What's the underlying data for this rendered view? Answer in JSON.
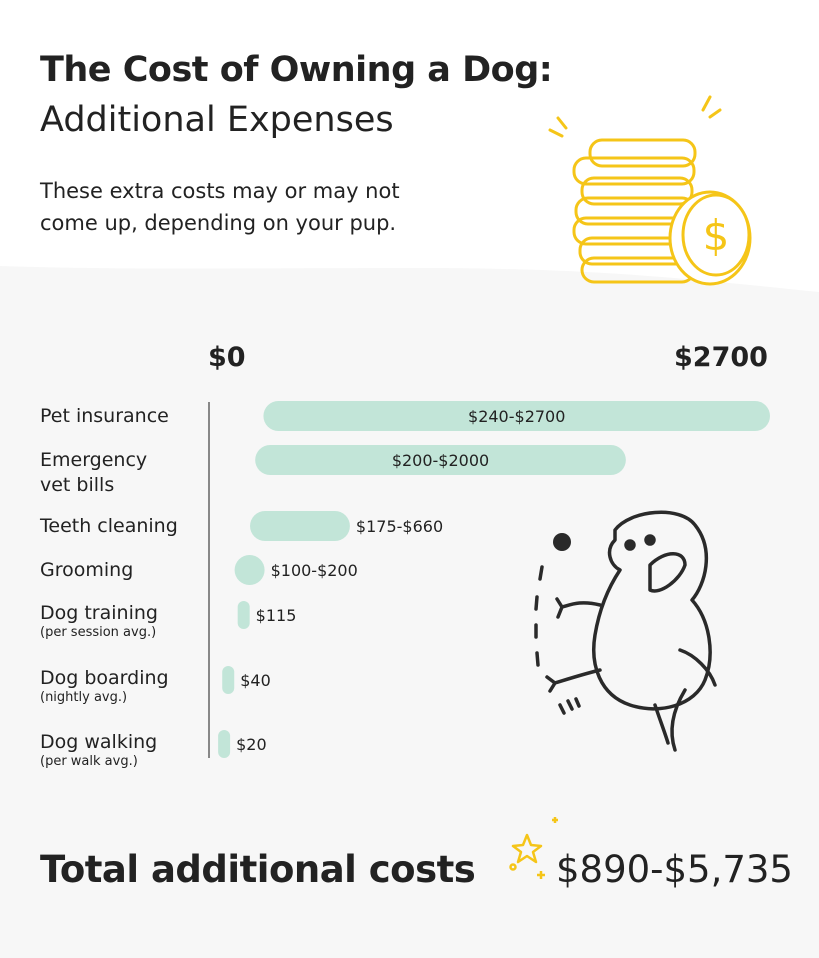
{
  "header": {
    "title": "The Cost of Owning a Dog:",
    "subtitle": "Additional Expenses",
    "description": "These extra costs may or may not come up, depending on your pup."
  },
  "chart_data": {
    "type": "bar",
    "orientation": "horizontal-range",
    "xlim": [
      0,
      2700
    ],
    "axis_labels": {
      "min": "$0",
      "max": "$2700"
    },
    "bar_color": "#c2e5d8",
    "grid": false,
    "categories": [
      {
        "name": "Pet insurance",
        "note": "",
        "low": 240,
        "high": 2700,
        "label": "$240-$2700",
        "label_inside": true
      },
      {
        "name": "Emergency vet bills",
        "note": "",
        "low": 200,
        "high": 2000,
        "label": "$200-$2000",
        "label_inside": true
      },
      {
        "name": "Teeth cleaning",
        "note": "",
        "low": 175,
        "high": 660,
        "label": "$175-$660",
        "label_inside": false
      },
      {
        "name": "Grooming",
        "note": "",
        "low": 100,
        "high": 200,
        "label": "$100-$200",
        "label_inside": false
      },
      {
        "name": "Dog training",
        "note": "(per session avg.)",
        "low": 115,
        "high": 115,
        "label": "$115",
        "label_inside": false
      },
      {
        "name": "Dog boarding",
        "note": "(nightly avg.)",
        "low": 40,
        "high": 40,
        "label": "$40",
        "label_inside": false
      },
      {
        "name": "Dog walking",
        "note": "(per walk avg.)",
        "low": 20,
        "high": 20,
        "label": "$20",
        "label_inside": false
      }
    ]
  },
  "total": {
    "label": "Total additional costs",
    "value": "$890-$5,735"
  },
  "colors": {
    "coin": "#f5c518",
    "ink": "#2a2a2a",
    "bar": "#c2e5d8"
  },
  "icons": [
    "coin-stack-illustration",
    "dog-playing-ball-illustration",
    "sparkle-star-icon"
  ]
}
